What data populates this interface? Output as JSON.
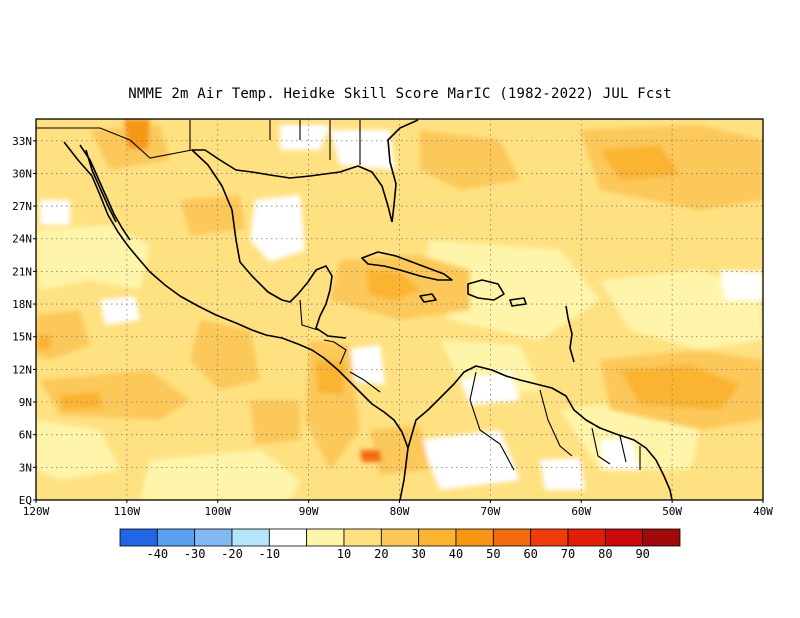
{
  "title": "NMME  2m Air Temp. Heidke Skill Score MarIC (1982-2022) JUL Fcst",
  "map": {
    "lon_range": [
      -120,
      -40
    ],
    "lat_range": [
      0,
      35
    ],
    "lat_labels": [
      {
        "lat": 33,
        "label": "33N"
      },
      {
        "lat": 30,
        "label": "30N"
      },
      {
        "lat": 27,
        "label": "27N"
      },
      {
        "lat": 24,
        "label": "24N"
      },
      {
        "lat": 21,
        "label": "21N"
      },
      {
        "lat": 18,
        "label": "18N"
      },
      {
        "lat": 15,
        "label": "15N"
      },
      {
        "lat": 12,
        "label": "12N"
      },
      {
        "lat": 9,
        "label": "9N"
      },
      {
        "lat": 6,
        "label": "6N"
      },
      {
        "lat": 3,
        "label": "3N"
      },
      {
        "lat": 0,
        "label": "EQ"
      }
    ],
    "lon_labels": [
      {
        "lon": -120,
        "label": "120W"
      },
      {
        "lon": -110,
        "label": "110W"
      },
      {
        "lon": -100,
        "label": "100W"
      },
      {
        "lon": -90,
        "label": "90W"
      },
      {
        "lon": -80,
        "label": "80W"
      },
      {
        "lon": -70,
        "label": "70W"
      },
      {
        "lon": -60,
        "label": "60W"
      },
      {
        "lon": -50,
        "label": "50W"
      },
      {
        "lon": -40,
        "label": "40W"
      }
    ]
  },
  "colorbar": {
    "colors": [
      "#2166e6",
      "#5aa0f0",
      "#82b9f5",
      "#b4e6fa",
      "#ffffff",
      "#fff5aa",
      "#ffe182",
      "#fcc85a",
      "#fab432",
      "#f89614",
      "#f26b0a",
      "#ee3c0a",
      "#e11e0a",
      "#c80a0a",
      "#a00a0a"
    ],
    "labels": [
      "-40",
      "-30",
      "-20",
      "-10",
      "10",
      "20",
      "30",
      "40",
      "50",
      "60",
      "70",
      "80",
      "90"
    ]
  }
}
